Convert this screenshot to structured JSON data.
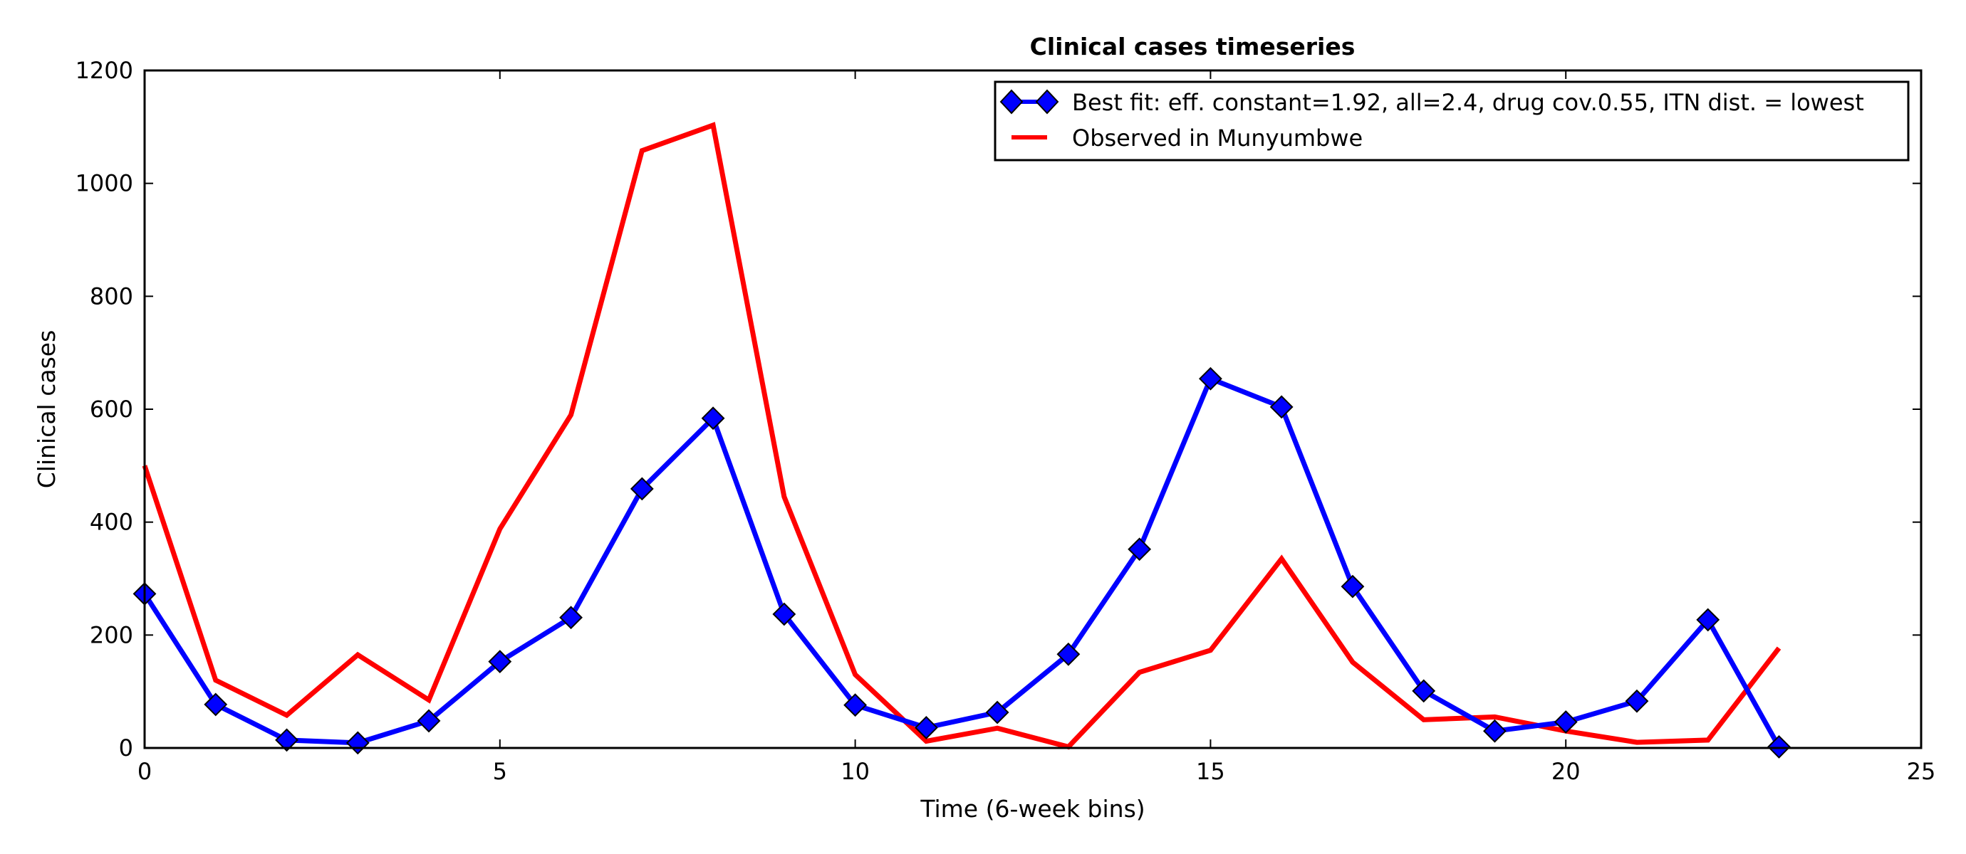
{
  "chart_data": {
    "type": "line",
    "title": "Clinical cases timeseries",
    "xlabel": "Time (6-week bins)",
    "ylabel": "Clinical cases",
    "xlim": [
      0,
      25
    ],
    "ylim": [
      0,
      1200
    ],
    "xticks": [
      0,
      5,
      10,
      15,
      20,
      25
    ],
    "yticks": [
      0,
      200,
      400,
      600,
      800,
      1000,
      1200
    ],
    "grid": false,
    "legend_position": "top-right",
    "series": [
      {
        "name": "Best fit: eff. constant=1.92, all=2.4, drug cov.0.55, ITN dist. = lowest",
        "color": "#0000ff",
        "marker": "diamond",
        "x": [
          0,
          1,
          2,
          3,
          4,
          5,
          6,
          7,
          8,
          9,
          10,
          11,
          12,
          13,
          14,
          15,
          16,
          17,
          18,
          19,
          20,
          21,
          22,
          23
        ],
        "y": [
          273,
          77,
          14,
          9,
          48,
          153,
          231,
          459,
          584,
          237,
          76,
          36,
          63,
          166,
          352,
          654,
          604,
          286,
          101,
          30,
          46,
          83,
          227,
          2
        ]
      },
      {
        "name": "Observed in Munyumbwe",
        "color": "#ff0000",
        "marker": "none",
        "x": [
          0,
          1,
          2,
          3,
          4,
          5,
          6,
          7,
          8,
          9,
          10,
          11,
          12,
          13,
          14,
          15,
          16,
          17,
          18,
          19,
          20,
          21,
          22,
          23
        ],
        "y": [
          500,
          120,
          58,
          165,
          85,
          388,
          590,
          1058,
          1103,
          445,
          130,
          12,
          35,
          2,
          134,
          173,
          335,
          152,
          50,
          55,
          30,
          10,
          14,
          177
        ]
      }
    ]
  }
}
